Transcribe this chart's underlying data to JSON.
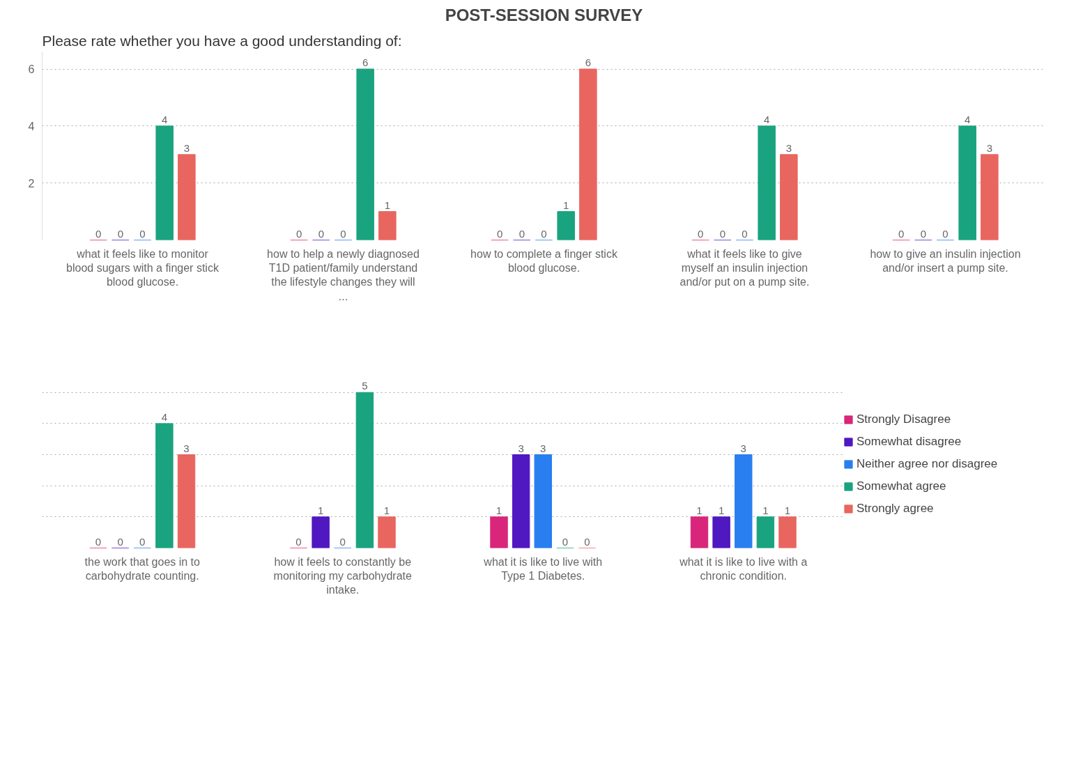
{
  "chart_data": [
    {
      "type": "bar",
      "title": "POST-SESSION SURVEY",
      "subtitle": "Please rate whether you have a good understanding of:",
      "categories": [
        "what it feels like to monitor blood sugars with a finger stick blood glucose.",
        "how to help a newly diagnosed T1D patient/family understand the lifestyle changes they will ...",
        "how to complete a finger stick blood glucose.",
        "what it feels like to give myself an insulin injection and/or put on a pump site.",
        "how to give an insulin injection and/or insert a pump site."
      ],
      "series": [
        {
          "color": "#d9267a",
          "values": [
            0,
            0,
            0,
            0,
            0
          ]
        },
        {
          "color": "#5018c0",
          "values": [
            0,
            0,
            0,
            0,
            0
          ]
        },
        {
          "color": "#2a7ff0",
          "values": [
            0,
            0,
            0,
            0,
            0
          ]
        },
        {
          "color": "#1aa37f",
          "values": [
            4,
            6,
            1,
            4,
            4
          ]
        },
        {
          "color": "#e8665f",
          "values": [
            3,
            1,
            6,
            3,
            3
          ]
        }
      ],
      "ylim": [
        0,
        6.6
      ],
      "yticks": [
        2,
        4,
        6
      ],
      "grid": "y",
      "data_labels": true
    },
    {
      "type": "bar",
      "categories": [
        "the work that goes in to carbohydrate counting.",
        "how it feels to constantly be monitoring my carbohydrate intake.",
        "what it is like to live with Type 1 Diabetes.",
        "what it is like to live with a chronic condition."
      ],
      "series": [
        {
          "name": "Strongly Disagree",
          "color": "#d9267a",
          "values": [
            0,
            0,
            1,
            1
          ]
        },
        {
          "name": "Somewhat disagree",
          "color": "#5018c0",
          "values": [
            0,
            1,
            3,
            1
          ]
        },
        {
          "name": "Neither agree nor disagree",
          "color": "#2a7ff0",
          "values": [
            0,
            0,
            3,
            3
          ]
        },
        {
          "name": "Somewhat agree",
          "color": "#1aa37f",
          "values": [
            4,
            5,
            0,
            1
          ]
        },
        {
          "name": "Strongly agree",
          "color": "#e8665f",
          "values": [
            3,
            1,
            0,
            1
          ]
        }
      ],
      "grid": "y",
      "data_labels": true,
      "legend": "right",
      "tick_labels": "x"
    }
  ]
}
